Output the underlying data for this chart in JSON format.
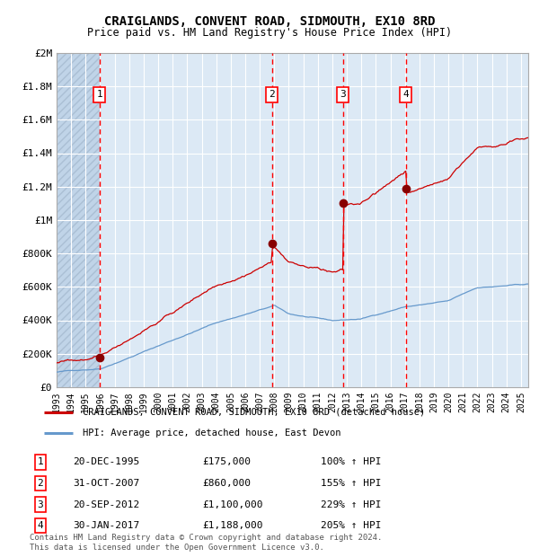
{
  "title": "CRAIGLANDS, CONVENT ROAD, SIDMOUTH, EX10 8RD",
  "subtitle": "Price paid vs. HM Land Registry's House Price Index (HPI)",
  "ylim": [
    0,
    2000000
  ],
  "yticks": [
    0,
    200000,
    400000,
    600000,
    800000,
    1000000,
    1200000,
    1400000,
    1600000,
    1800000,
    2000000
  ],
  "ytick_labels": [
    "£0",
    "£200K",
    "£400K",
    "£600K",
    "£800K",
    "£1M",
    "£1.2M",
    "£1.4M",
    "£1.6M",
    "£1.8M",
    "£2M"
  ],
  "xlim_start": 1993.0,
  "xlim_end": 2025.5,
  "background_color": "#dce9f5",
  "hatch_color": "#c0d4e8",
  "sale_color": "#cc0000",
  "hpi_color": "#6699cc",
  "sale_label": "CRAIGLANDS, CONVENT ROAD, SIDMOUTH, EX10 8RD (detached house)",
  "hpi_label": "HPI: Average price, detached house, East Devon",
  "transactions": [
    {
      "num": 1,
      "date_label": "20-DEC-1995",
      "price_label": "£175,000",
      "pct_label": "100% ↑ HPI",
      "year": 1995.97,
      "price": 175000
    },
    {
      "num": 2,
      "date_label": "31-OCT-2007",
      "price_label": "£860,000",
      "pct_label": "155% ↑ HPI",
      "year": 2007.83,
      "price": 860000
    },
    {
      "num": 3,
      "date_label": "20-SEP-2012",
      "price_label": "£1,100,000",
      "pct_label": "229% ↑ HPI",
      "year": 2012.72,
      "price": 1100000
    },
    {
      "num": 4,
      "date_label": "30-JAN-2017",
      "price_label": "£1,188,000",
      "pct_label": "205% ↑ HPI",
      "year": 2017.08,
      "price": 1188000
    }
  ],
  "footer": "Contains HM Land Registry data © Crown copyright and database right 2024.\nThis data is licensed under the Open Government Licence v3.0.",
  "xtick_years": [
    1993,
    1994,
    1995,
    1996,
    1997,
    1998,
    1999,
    2000,
    2001,
    2002,
    2003,
    2004,
    2005,
    2006,
    2007,
    2008,
    2009,
    2010,
    2011,
    2012,
    2013,
    2014,
    2015,
    2016,
    2017,
    2018,
    2019,
    2020,
    2021,
    2022,
    2023,
    2024,
    2025
  ]
}
